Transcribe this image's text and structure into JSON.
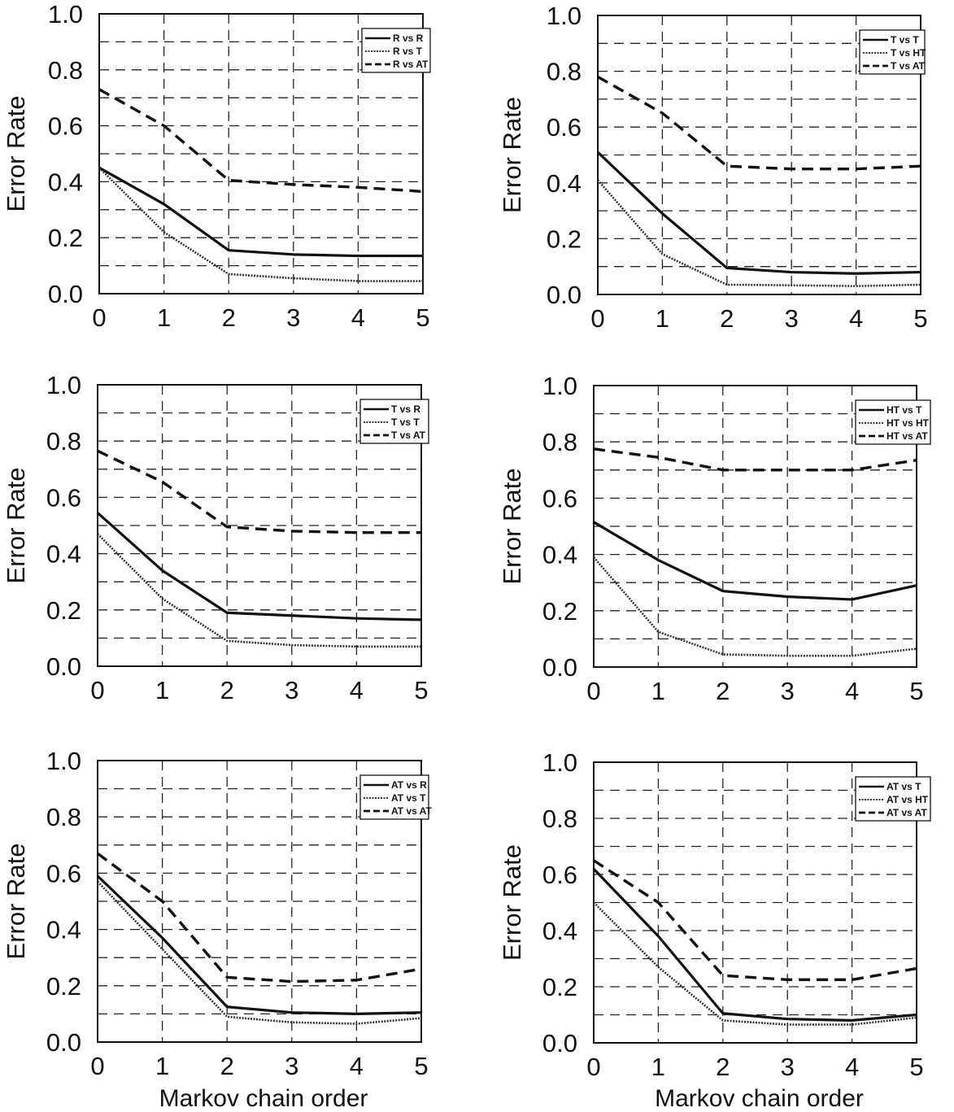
{
  "chart_data": [
    {
      "type": "line",
      "ylabel": "Error Rate",
      "xlabel": "",
      "x": [
        0,
        1,
        2,
        3,
        4,
        5
      ],
      "xlim": [
        0,
        5
      ],
      "ylim": [
        0,
        1
      ],
      "xticks": [
        "0",
        "1",
        "2",
        "3",
        "4",
        "5"
      ],
      "yticks": [
        "0.0",
        "0.2",
        "0.4",
        "0.6",
        "0.8",
        "1.0"
      ],
      "grid": true,
      "legend": "top-right",
      "series": [
        {
          "name": "R vs R",
          "style": "solid",
          "values": [
            0.45,
            0.32,
            0.155,
            0.14,
            0.135,
            0.135
          ]
        },
        {
          "name": "R vs T",
          "style": "dotted",
          "values": [
            0.45,
            0.22,
            0.07,
            0.055,
            0.045,
            0.045
          ]
        },
        {
          "name": "R vs AT",
          "style": "dashed",
          "values": [
            0.73,
            0.6,
            0.405,
            0.39,
            0.38,
            0.365
          ]
        }
      ]
    },
    {
      "type": "line",
      "ylabel": "Error Rate",
      "xlabel": "",
      "x": [
        0,
        1,
        2,
        3,
        4,
        5
      ],
      "xlim": [
        0,
        5
      ],
      "ylim": [
        0,
        1
      ],
      "xticks": [
        "0",
        "1",
        "2",
        "3",
        "4",
        "5"
      ],
      "yticks": [
        "0.0",
        "0.2",
        "0.4",
        "0.6",
        "0.8",
        "1.0"
      ],
      "grid": true,
      "legend": "top-right",
      "series": [
        {
          "name": "T vs T",
          "style": "solid",
          "values": [
            0.51,
            0.29,
            0.095,
            0.08,
            0.075,
            0.08
          ]
        },
        {
          "name": "T vs HT",
          "style": "dotted",
          "values": [
            0.41,
            0.145,
            0.035,
            0.033,
            0.03,
            0.035
          ]
        },
        {
          "name": "T vs AT",
          "style": "dashed",
          "values": [
            0.78,
            0.65,
            0.46,
            0.45,
            0.45,
            0.46
          ]
        }
      ]
    },
    {
      "type": "line",
      "ylabel": "Error Rate",
      "xlabel": "",
      "x": [
        0,
        1,
        2,
        3,
        4,
        5
      ],
      "xlim": [
        0,
        5
      ],
      "ylim": [
        0,
        1
      ],
      "xticks": [
        "0",
        "1",
        "2",
        "3",
        "4",
        "5"
      ],
      "yticks": [
        "0.0",
        "0.2",
        "0.4",
        "0.6",
        "0.8",
        "1.0"
      ],
      "grid": true,
      "legend": "top-right",
      "series": [
        {
          "name": "T vs R",
          "style": "solid",
          "values": [
            0.545,
            0.34,
            0.19,
            0.18,
            0.17,
            0.165
          ]
        },
        {
          "name": "T vs T",
          "style": "dotted",
          "values": [
            0.47,
            0.24,
            0.09,
            0.075,
            0.07,
            0.07
          ]
        },
        {
          "name": "T vs AT",
          "style": "dashed",
          "values": [
            0.765,
            0.655,
            0.495,
            0.48,
            0.475,
            0.475
          ]
        }
      ]
    },
    {
      "type": "line",
      "ylabel": "Error Rate",
      "xlabel": "",
      "x": [
        0,
        1,
        2,
        3,
        4,
        5
      ],
      "xlim": [
        0,
        5
      ],
      "ylim": [
        0,
        1
      ],
      "xticks": [
        "0",
        "1",
        "2",
        "3",
        "4",
        "5"
      ],
      "yticks": [
        "0.0",
        "0.2",
        "0.4",
        "0.6",
        "0.8",
        "1.0"
      ],
      "grid": true,
      "legend": "top-right",
      "series": [
        {
          "name": "HT vs T",
          "style": "solid",
          "values": [
            0.515,
            0.38,
            0.27,
            0.25,
            0.24,
            0.29
          ]
        },
        {
          "name": "HT vs HT",
          "style": "dotted",
          "values": [
            0.39,
            0.125,
            0.045,
            0.04,
            0.04,
            0.065
          ]
        },
        {
          "name": "HT vs AT",
          "style": "dashed",
          "values": [
            0.775,
            0.745,
            0.7,
            0.7,
            0.7,
            0.735
          ]
        }
      ]
    },
    {
      "type": "line",
      "ylabel": "Error Rate",
      "xlabel": "Markov chain order",
      "x": [
        0,
        1,
        2,
        3,
        4,
        5
      ],
      "xlim": [
        0,
        5
      ],
      "ylim": [
        0,
        1
      ],
      "xticks": [
        "0",
        "1",
        "2",
        "3",
        "4",
        "5"
      ],
      "yticks": [
        "0.0",
        "0.2",
        "0.4",
        "0.6",
        "0.8",
        "1.0"
      ],
      "grid": true,
      "legend": "top-right",
      "series": [
        {
          "name": "AT vs R",
          "style": "solid",
          "values": [
            0.59,
            0.37,
            0.125,
            0.105,
            0.1,
            0.105
          ]
        },
        {
          "name": "AT vs T",
          "style": "dotted",
          "values": [
            0.57,
            0.33,
            0.09,
            0.07,
            0.065,
            0.085
          ]
        },
        {
          "name": "AT vs AT",
          "style": "dashed",
          "values": [
            0.67,
            0.5,
            0.23,
            0.215,
            0.22,
            0.26
          ]
        }
      ]
    },
    {
      "type": "line",
      "ylabel": "Error Rate",
      "xlabel": "Markov chain order",
      "x": [
        0,
        1,
        2,
        3,
        4,
        5
      ],
      "xlim": [
        0,
        5
      ],
      "ylim": [
        0,
        1
      ],
      "xticks": [
        "0",
        "1",
        "2",
        "3",
        "4",
        "5"
      ],
      "yticks": [
        "0.0",
        "0.2",
        "0.4",
        "0.6",
        "0.8",
        "1.0"
      ],
      "grid": true,
      "legend": "top-right",
      "series": [
        {
          "name": "AT vs T",
          "style": "solid",
          "values": [
            0.62,
            0.38,
            0.105,
            0.085,
            0.08,
            0.1
          ]
        },
        {
          "name": "AT vs HT",
          "style": "dotted",
          "values": [
            0.5,
            0.27,
            0.08,
            0.065,
            0.065,
            0.09
          ]
        },
        {
          "name": "AT vs AT",
          "style": "dashed",
          "values": [
            0.65,
            0.5,
            0.24,
            0.225,
            0.225,
            0.265
          ]
        }
      ]
    }
  ]
}
